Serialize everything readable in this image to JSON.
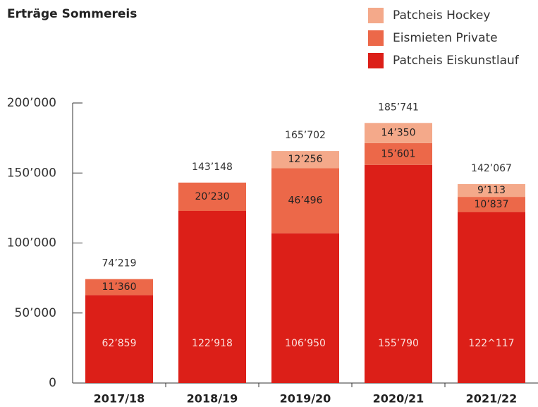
{
  "chart_data": {
    "type": "stacked_bar",
    "title": "Erträge Sommereis",
    "categories": [
      "2017/18",
      "2018/19",
      "2019/20",
      "2020/21",
      "2021/22"
    ],
    "series": [
      {
        "name": "Patcheis Eiskunstlauf",
        "color": "#dc1f18",
        "values": [
          62859,
          122918,
          106950,
          155790,
          122117
        ],
        "value_labels": [
          "62’859",
          "122’918",
          "106’950",
          "155’790",
          "122^117"
        ]
      },
      {
        "name": "Eismieten Private",
        "color": "#ec6849",
        "values": [
          11360,
          20230,
          46496,
          15601,
          10837
        ],
        "value_labels": [
          "11’360",
          "20’230",
          "46’496",
          "15’601",
          "10’837"
        ]
      },
      {
        "name": "Patcheis Hockey",
        "color": "#f4a98a",
        "values": [
          null,
          null,
          12256,
          14350,
          9113
        ],
        "value_labels": [
          null,
          null,
          "12’256",
          "14’350",
          "9’113"
        ]
      }
    ],
    "total_labels": [
      "74’219",
      "143’148",
      "165’702",
      "185’741",
      "142’067"
    ],
    "ylim": [
      0,
      200000
    ],
    "yticks": [
      0,
      {
        "value": 50000,
        "label": "50’000"
      },
      {
        "value": 100000,
        "label": "100’000"
      },
      {
        "value": 150000,
        "label": "150’000"
      },
      {
        "value": 200000,
        "label": "200’000"
      }
    ]
  }
}
